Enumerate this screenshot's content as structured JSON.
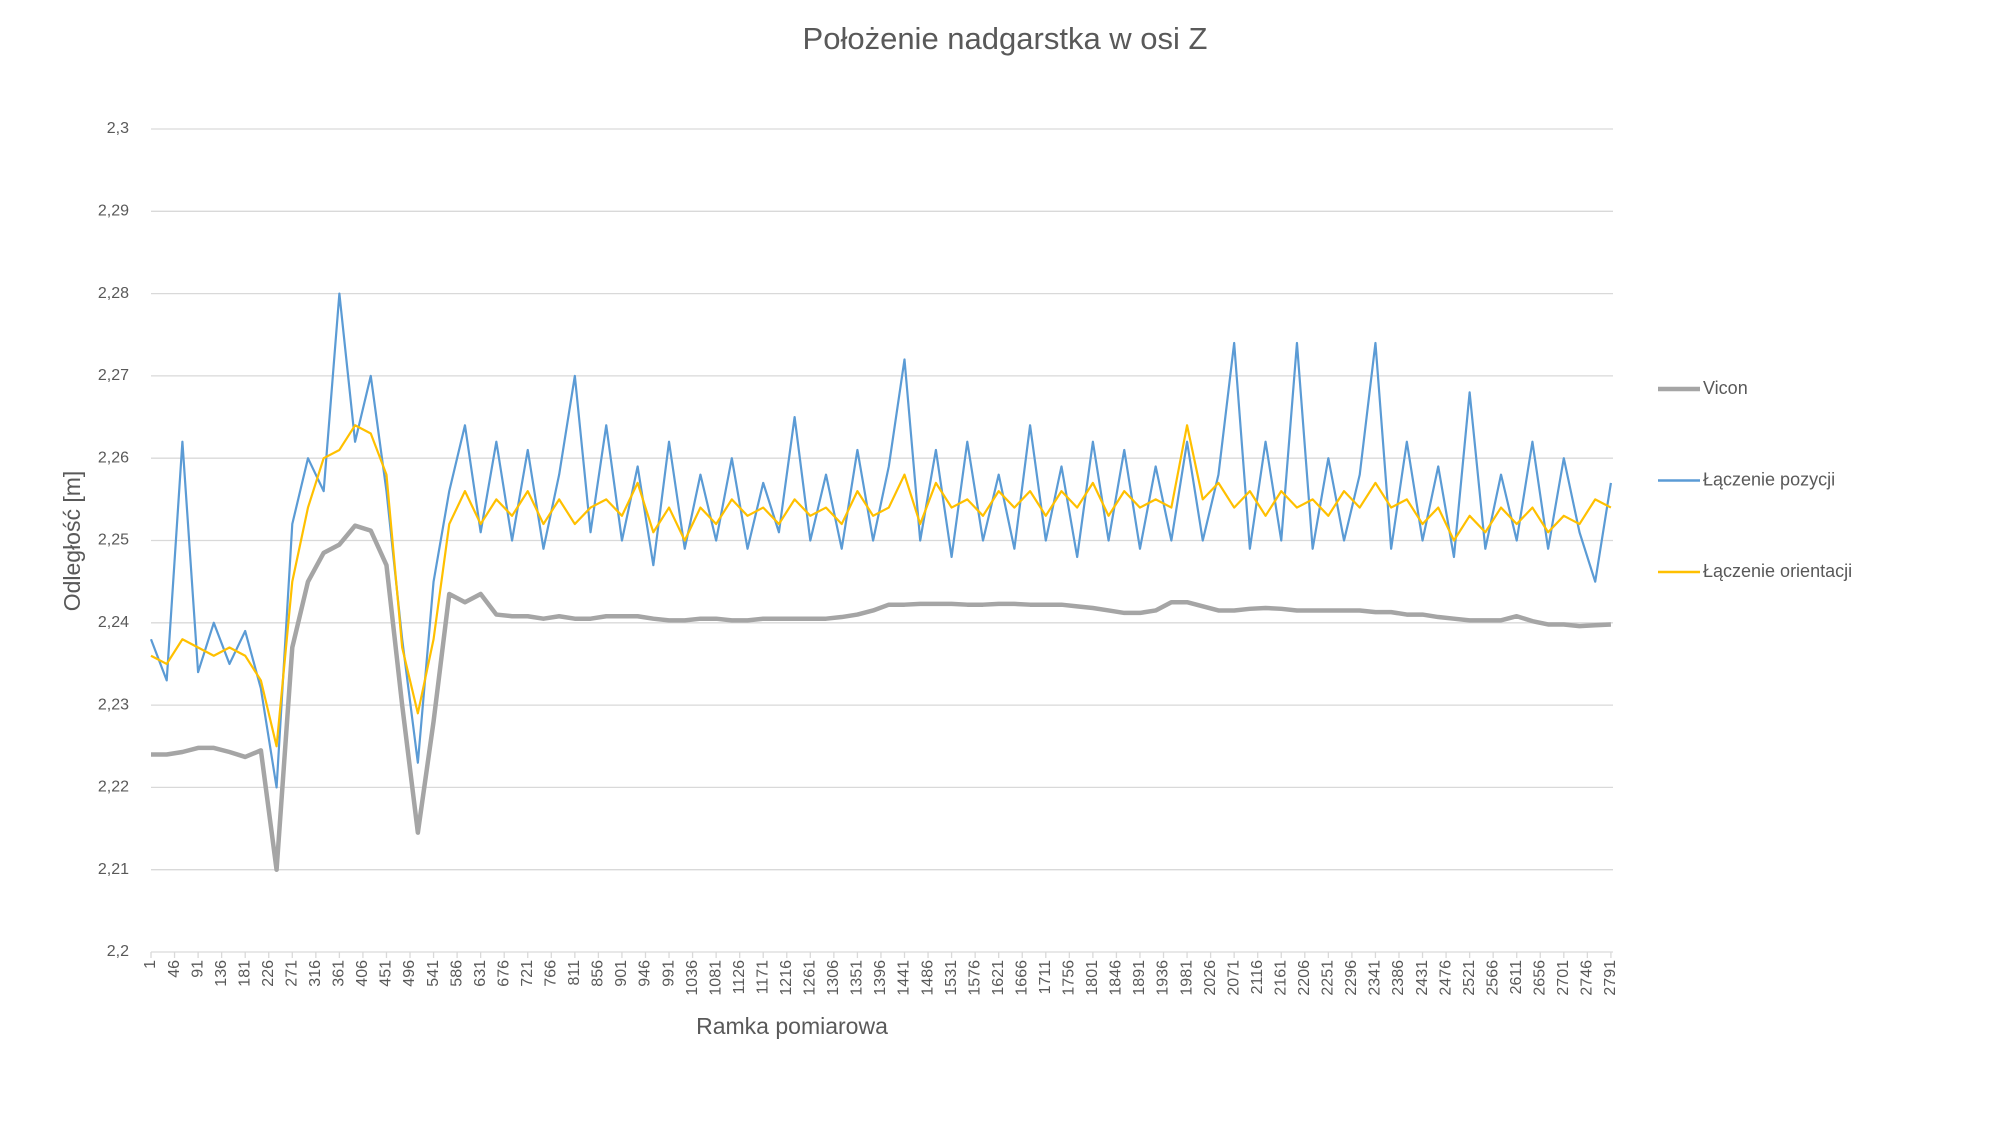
{
  "chart_data": {
    "type": "line",
    "title": "Położenie nadgarstka w osi Z",
    "x_label": "Ramka pomiarowa",
    "y_label": "Odległość [m]",
    "x": [
      1,
      31,
      61,
      91,
      121,
      151,
      181,
      211,
      241,
      271,
      301,
      331,
      361,
      391,
      421,
      451,
      481,
      511,
      541,
      571,
      601,
      631,
      661,
      691,
      721,
      751,
      781,
      811,
      841,
      871,
      901,
      931,
      961,
      991,
      1021,
      1051,
      1081,
      1111,
      1141,
      1171,
      1201,
      1231,
      1261,
      1291,
      1321,
      1351,
      1381,
      1411,
      1441,
      1471,
      1501,
      1531,
      1561,
      1591,
      1621,
      1651,
      1681,
      1711,
      1741,
      1771,
      1801,
      1831,
      1861,
      1891,
      1921,
      1951,
      1981,
      2011,
      2041,
      2071,
      2101,
      2131,
      2161,
      2191,
      2221,
      2251,
      2281,
      2311,
      2341,
      2371,
      2401,
      2431,
      2461,
      2491,
      2521,
      2551,
      2581,
      2611,
      2641,
      2671,
      2701,
      2731,
      2761,
      2791
    ],
    "series": [
      {
        "name": "Vicon",
        "color": "#a5a5a5",
        "values": [
          2.224,
          2.224,
          2.2243,
          2.2248,
          2.2248,
          2.2243,
          2.2237,
          2.2245,
          2.21,
          2.237,
          2.245,
          2.2485,
          2.2495,
          2.2518,
          2.2512,
          2.247,
          2.23,
          2.2145,
          2.228,
          2.2435,
          2.2425,
          2.2435,
          2.241,
          2.2408,
          2.2408,
          2.2405,
          2.2408,
          2.2405,
          2.2405,
          2.2408,
          2.2408,
          2.2408,
          2.2405,
          2.2403,
          2.2403,
          2.2405,
          2.2405,
          2.2403,
          2.2403,
          2.2405,
          2.2405,
          2.2405,
          2.2405,
          2.2405,
          2.2407,
          2.241,
          2.2415,
          2.2422,
          2.2422,
          2.2423,
          2.2423,
          2.2423,
          2.2422,
          2.2422,
          2.2423,
          2.2423,
          2.2422,
          2.2422,
          2.2422,
          2.242,
          2.2418,
          2.2415,
          2.2412,
          2.2412,
          2.2415,
          2.2425,
          2.2425,
          2.242,
          2.2415,
          2.2415,
          2.2417,
          2.2418,
          2.2417,
          2.2415,
          2.2415,
          2.2415,
          2.2415,
          2.2415,
          2.2413,
          2.2413,
          2.241,
          2.241,
          2.2407,
          2.2405,
          2.2403,
          2.2403,
          2.2403,
          2.2408,
          2.2402,
          2.2398,
          2.2398,
          2.2396,
          2.2397,
          2.2398
        ]
      },
      {
        "name": "Łączenie pozycji",
        "color": "#5b9bd5",
        "values": [
          2.238,
          2.233,
          2.262,
          2.234,
          2.24,
          2.235,
          2.239,
          2.232,
          2.22,
          2.252,
          2.26,
          2.256,
          2.28,
          2.262,
          2.27,
          2.256,
          2.238,
          2.223,
          2.245,
          2.256,
          2.264,
          2.251,
          2.262,
          2.25,
          2.261,
          2.249,
          2.258,
          2.27,
          2.251,
          2.264,
          2.25,
          2.259,
          2.247,
          2.262,
          2.249,
          2.258,
          2.25,
          2.26,
          2.249,
          2.257,
          2.251,
          2.265,
          2.25,
          2.258,
          2.249,
          2.261,
          2.25,
          2.259,
          2.272,
          2.25,
          2.261,
          2.248,
          2.262,
          2.25,
          2.258,
          2.249,
          2.264,
          2.25,
          2.259,
          2.248,
          2.262,
          2.25,
          2.261,
          2.249,
          2.259,
          2.25,
          2.262,
          2.25,
          2.258,
          2.274,
          2.249,
          2.262,
          2.25,
          2.274,
          2.249,
          2.26,
          2.25,
          2.258,
          2.274,
          2.249,
          2.262,
          2.25,
          2.259,
          2.248,
          2.268,
          2.249,
          2.258,
          2.25,
          2.262,
          2.249,
          2.26,
          2.251,
          2.245,
          2.257
        ]
      },
      {
        "name": "Łączenie orientacji",
        "color": "#ffc000",
        "values": [
          2.236,
          2.235,
          2.238,
          2.237,
          2.236,
          2.237,
          2.236,
          2.233,
          2.225,
          2.245,
          2.254,
          2.26,
          2.261,
          2.264,
          2.263,
          2.258,
          2.237,
          2.229,
          2.238,
          2.252,
          2.256,
          2.252,
          2.255,
          2.253,
          2.256,
          2.252,
          2.255,
          2.252,
          2.254,
          2.255,
          2.253,
          2.257,
          2.251,
          2.254,
          2.25,
          2.254,
          2.252,
          2.255,
          2.253,
          2.254,
          2.252,
          2.255,
          2.253,
          2.254,
          2.252,
          2.256,
          2.253,
          2.254,
          2.258,
          2.252,
          2.257,
          2.254,
          2.255,
          2.253,
          2.256,
          2.254,
          2.256,
          2.253,
          2.256,
          2.254,
          2.257,
          2.253,
          2.256,
          2.254,
          2.255,
          2.254,
          2.264,
          2.255,
          2.257,
          2.254,
          2.256,
          2.253,
          2.256,
          2.254,
          2.255,
          2.253,
          2.256,
          2.254,
          2.257,
          2.254,
          2.255,
          2.252,
          2.254,
          2.25,
          2.253,
          2.251,
          2.254,
          2.252,
          2.254,
          2.251,
          2.253,
          2.252,
          2.255,
          2.254
        ]
      }
    ],
    "xlim": [
      1,
      2795
    ],
    "xticks": [
      1,
      46,
      91,
      136,
      181,
      226,
      271,
      316,
      361,
      406,
      451,
      496,
      541,
      586,
      631,
      676,
      721,
      766,
      811,
      856,
      901,
      946,
      991,
      1036,
      1081,
      1126,
      1171,
      1216,
      1261,
      1306,
      1351,
      1396,
      1441,
      1486,
      1531,
      1576,
      1621,
      1666,
      1711,
      1756,
      1801,
      1846,
      1891,
      1936,
      1981,
      2026,
      2071,
      2116,
      2161,
      2206,
      2251,
      2296,
      2341,
      2386,
      2431,
      2476,
      2521,
      2566,
      2611,
      2656,
      2701,
      2746,
      2791
    ],
    "ylim": [
      2.2,
      2.3
    ],
    "yticks": [
      {
        "value": 2.2,
        "label": "2,2"
      },
      {
        "value": 2.21,
        "label": "2,21"
      },
      {
        "value": 2.22,
        "label": "2,22"
      },
      {
        "value": 2.23,
        "label": "2,23"
      },
      {
        "value": 2.24,
        "label": "2,24"
      },
      {
        "value": 2.25,
        "label": "2,25"
      },
      {
        "value": 2.26,
        "label": "2,26"
      },
      {
        "value": 2.27,
        "label": "2,27"
      },
      {
        "value": 2.28,
        "label": "2,28"
      },
      {
        "value": 2.29,
        "label": "2,29"
      },
      {
        "value": 2.3,
        "label": "2,3"
      }
    ],
    "grid": true,
    "legend": "right"
  }
}
